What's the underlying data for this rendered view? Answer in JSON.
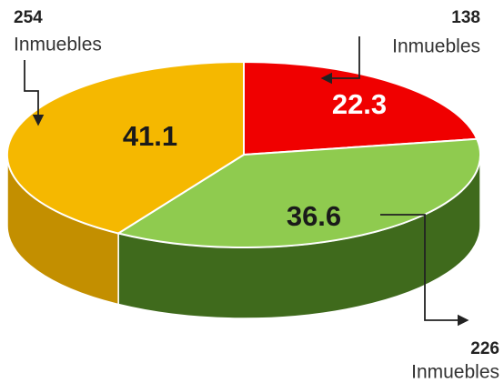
{
  "chart_data": {
    "type": "pie",
    "values": [
      22.3,
      36.6,
      41.1
    ],
    "colors": [
      "#f00000",
      "#8fcb4f",
      "#f5b800"
    ],
    "side_colors": [
      "#a00000",
      "#3f6a1c",
      "#c38f00"
    ],
    "label_colors": [
      "#ffffff",
      "#1a1a1a",
      "#1a1a1a"
    ],
    "annotations": [
      {
        "value": 138,
        "label": "Inmuebles"
      },
      {
        "value": 226,
        "label": "Inmuebles"
      },
      {
        "value": 254,
        "label": "Inmuebles"
      }
    ]
  }
}
